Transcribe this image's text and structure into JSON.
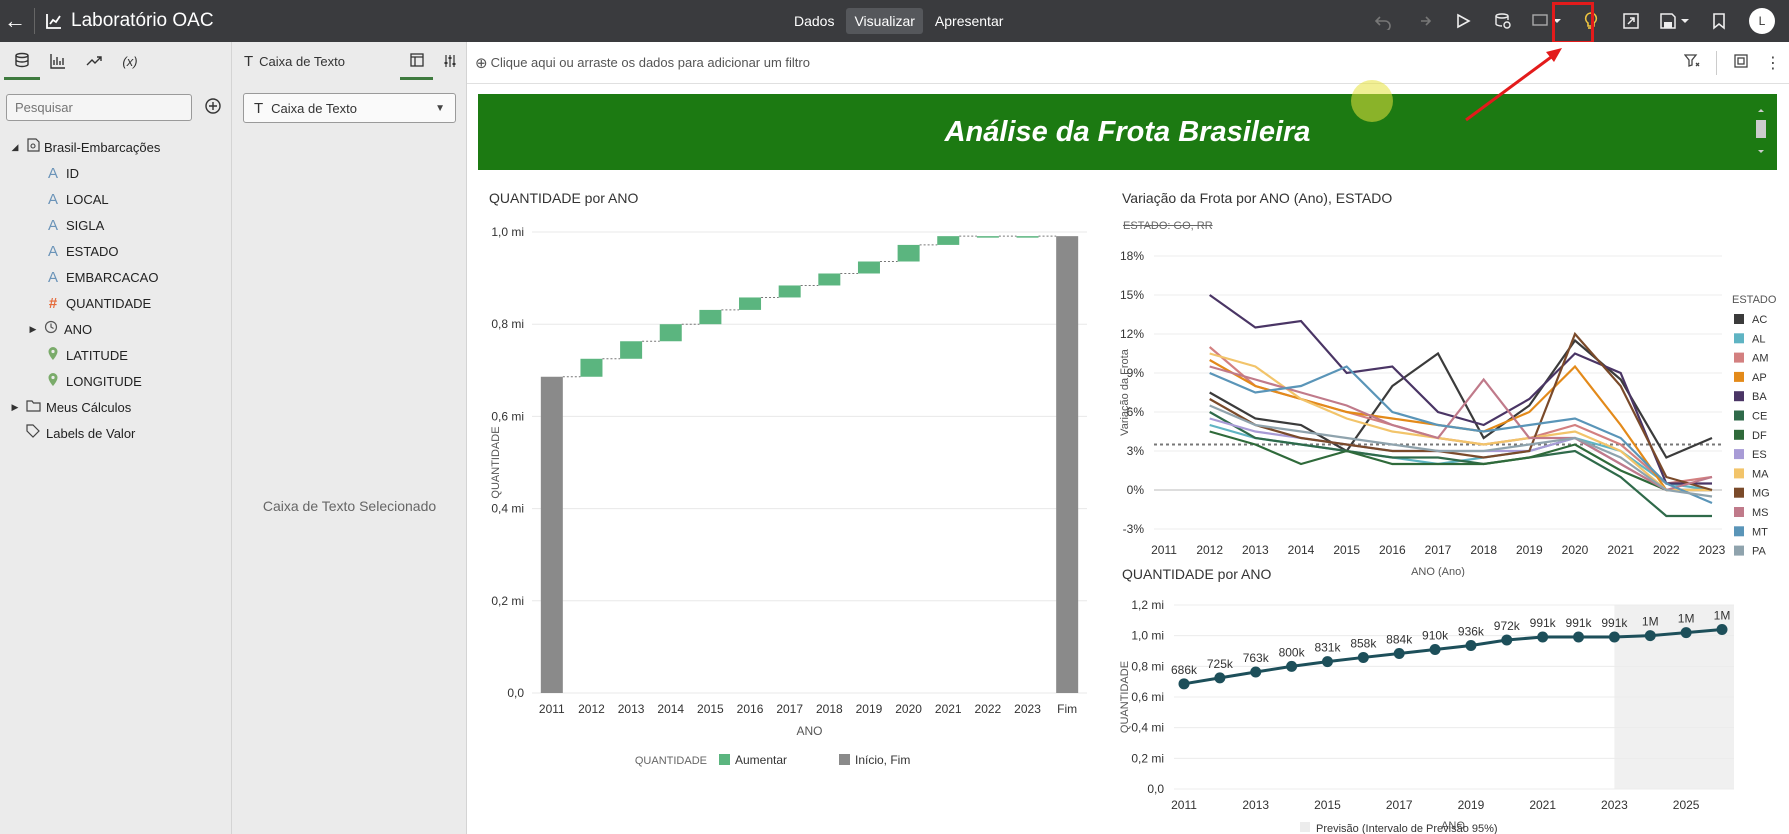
{
  "app": {
    "title": "Laboratório OAC"
  },
  "nav": {
    "dados": "Dados",
    "visualizar": "Visualizar",
    "apresentar": "Apresentar"
  },
  "user": {
    "initial": "L"
  },
  "left": {
    "search_placeholder": "Pesquisar",
    "dataset": "Brasil-Embarcações",
    "fields": [
      {
        "name": "ID",
        "icon": "A"
      },
      {
        "name": "LOCAL",
        "icon": "A"
      },
      {
        "name": "SIGLA",
        "icon": "A"
      },
      {
        "name": "ESTADO",
        "icon": "A"
      },
      {
        "name": "EMBARCACAO",
        "icon": "A"
      },
      {
        "name": "QUANTIDADE",
        "icon": "#"
      },
      {
        "name": "ANO",
        "icon": "clock"
      },
      {
        "name": "LATITUDE",
        "icon": "pin"
      },
      {
        "name": "LONGITUDE",
        "icon": "pin"
      }
    ],
    "folders": [
      "Meus Cálculos",
      "Labels de Valor"
    ]
  },
  "mid": {
    "header": "Caixa de Texto",
    "dropdown": "Caixa de Texto",
    "selected": "Caixa de Texto Selecionado"
  },
  "canvas": {
    "filter_hint": "Clique aqui ou arraste os dados para adicionar um filtro",
    "banner": "Análise da Frota Brasileira"
  },
  "colors": {
    "banner": "#1c7a12",
    "increase": "#5bb57f",
    "total": "#8a8a8a",
    "highlight": "#e31b1b",
    "forecast_line": "#1d4f5a"
  },
  "chart_data": [
    {
      "type": "bar",
      "subtype": "waterfall",
      "title": "QUANTIDADE por ANO",
      "xlabel": "ANO",
      "ylabel": "QUANTIDADE",
      "ylim": [
        0,
        1.0
      ],
      "yticks": [
        "0,0",
        "0,2 mi",
        "0,4 mi",
        "0,6 mi",
        "0,8 mi",
        "1,0 mi"
      ],
      "categories": [
        "2011",
        "2012",
        "2013",
        "2014",
        "2015",
        "2016",
        "2017",
        "2018",
        "2019",
        "2020",
        "2021",
        "2022",
        "2023",
        "Fim"
      ],
      "values": [
        0.686,
        0.725,
        0.763,
        0.8,
        0.831,
        0.858,
        0.884,
        0.91,
        0.936,
        0.972,
        0.991,
        0.991,
        0.991,
        0.991
      ],
      "legend": {
        "title": "QUANTIDADE",
        "items": [
          "Aumentar",
          "Início, Fim"
        ]
      }
    },
    {
      "type": "line",
      "title": "Variação da Frota por ANO (Ano), ESTADO",
      "excluded": "ESTADO: GO, RR",
      "xlabel": "ANO (Ano)",
      "ylabel": "Variação da Frota",
      "x": [
        "2011",
        "2012",
        "2013",
        "2014",
        "2015",
        "2016",
        "2017",
        "2018",
        "2019",
        "2020",
        "2021",
        "2022",
        "2023"
      ],
      "ylim": [
        -3,
        18
      ],
      "yticks": [
        "-3%",
        "0%",
        "3%",
        "6%",
        "9%",
        "12%",
        "15%",
        "18%"
      ],
      "reference": 3.5,
      "legend_title": "ESTADO",
      "series": [
        {
          "name": "AC",
          "color": "#3b3b3b",
          "values": [
            null,
            7.5,
            5.5,
            5,
            3,
            8,
            10.5,
            4,
            6.5,
            11.5,
            8.5,
            2.5,
            4
          ]
        },
        {
          "name": "AL",
          "color": "#5fb4c3",
          "values": [
            null,
            5,
            4,
            3.5,
            3,
            2.5,
            2,
            2.5,
            3,
            4,
            3,
            0.5,
            0
          ]
        },
        {
          "name": "AM",
          "color": "#d38080",
          "values": [
            null,
            11,
            8,
            7,
            6,
            5,
            4,
            3.5,
            4,
            5,
            3.5,
            0.5,
            1
          ]
        },
        {
          "name": "AP",
          "color": "#e38a1a",
          "values": [
            null,
            10,
            8,
            7,
            6,
            5.5,
            5,
            4.5,
            6,
            9.5,
            5,
            0,
            0
          ]
        },
        {
          "name": "BA",
          "color": "#4a3565",
          "values": [
            null,
            15,
            12.5,
            13,
            9,
            9.5,
            6,
            5,
            7,
            10.5,
            9,
            0.5,
            0.5
          ]
        },
        {
          "name": "CE",
          "color": "#2f6a4a",
          "values": [
            null,
            6,
            4,
            3.5,
            3,
            2.5,
            2.5,
            2,
            2.5,
            3,
            1,
            -2,
            -2
          ]
        },
        {
          "name": "DF",
          "color": "#2f6a3a",
          "values": [
            null,
            4.5,
            3.5,
            2,
            3,
            2,
            2,
            2,
            2.5,
            3.5,
            1.5,
            0,
            0
          ]
        },
        {
          "name": "ES",
          "color": "#a89bd6",
          "values": [
            null,
            5.5,
            4.5,
            4,
            3.5,
            3,
            3,
            3,
            3,
            4,
            2,
            0,
            0
          ]
        },
        {
          "name": "MA",
          "color": "#f2c46a",
          "values": [
            null,
            10.5,
            9.5,
            7,
            5.5,
            4.5,
            4,
            3.5,
            4,
            4.5,
            3,
            0,
            0
          ]
        },
        {
          "name": "MG",
          "color": "#7a4a2a",
          "values": [
            null,
            7,
            5,
            4,
            3.5,
            3,
            3,
            2.5,
            3,
            12,
            8,
            1,
            0
          ]
        },
        {
          "name": "MS",
          "color": "#c07a8a",
          "values": [
            null,
            9.5,
            8.5,
            7.5,
            6.5,
            5,
            4,
            8.5,
            4,
            4,
            2,
            0,
            1
          ]
        },
        {
          "name": "MT",
          "color": "#5a95b8",
          "values": [
            null,
            9,
            7.5,
            8,
            9.5,
            6,
            5,
            4.5,
            5,
            5.5,
            4,
            0.5,
            -1
          ]
        },
        {
          "name": "PA",
          "color": "#8fa3ad",
          "values": [
            null,
            6.5,
            5,
            4.5,
            4,
            3.5,
            3,
            3,
            3.5,
            4,
            2.5,
            0,
            -0.5
          ]
        }
      ]
    },
    {
      "type": "line",
      "title": "QUANTIDADE por ANO",
      "xlabel": "ANO",
      "ylabel": "QUANTIDADE",
      "ylim": [
        0,
        1.2
      ],
      "yticks": [
        "0,0",
        "0,2 mi",
        "0,4 mi",
        "0,6 mi",
        "0,8 mi",
        "1,0 mi",
        "1,2 mi"
      ],
      "xticks": [
        "2011",
        "2013",
        "2015",
        "2017",
        "2019",
        "2021",
        "2023",
        "2025"
      ],
      "x": [
        2011,
        2012,
        2013,
        2014,
        2015,
        2016,
        2017,
        2018,
        2019,
        2020,
        2021,
        2022,
        2023,
        2024,
        2025,
        2026
      ],
      "values": [
        0.686,
        0.725,
        0.763,
        0.8,
        0.831,
        0.858,
        0.884,
        0.91,
        0.936,
        0.972,
        0.991,
        0.991,
        0.991,
        1.0,
        1.02,
        1.04
      ],
      "labels": [
        "686k",
        "725k",
        "763k",
        "800k",
        "831k",
        "858k",
        "884k",
        "910k",
        "936k",
        "972k",
        "991k",
        "991k",
        "991k",
        "1M",
        "1M",
        "1M"
      ],
      "forecast_start": 2023,
      "legend": "Previsão (Intervalo de Previsão 95%)"
    }
  ]
}
